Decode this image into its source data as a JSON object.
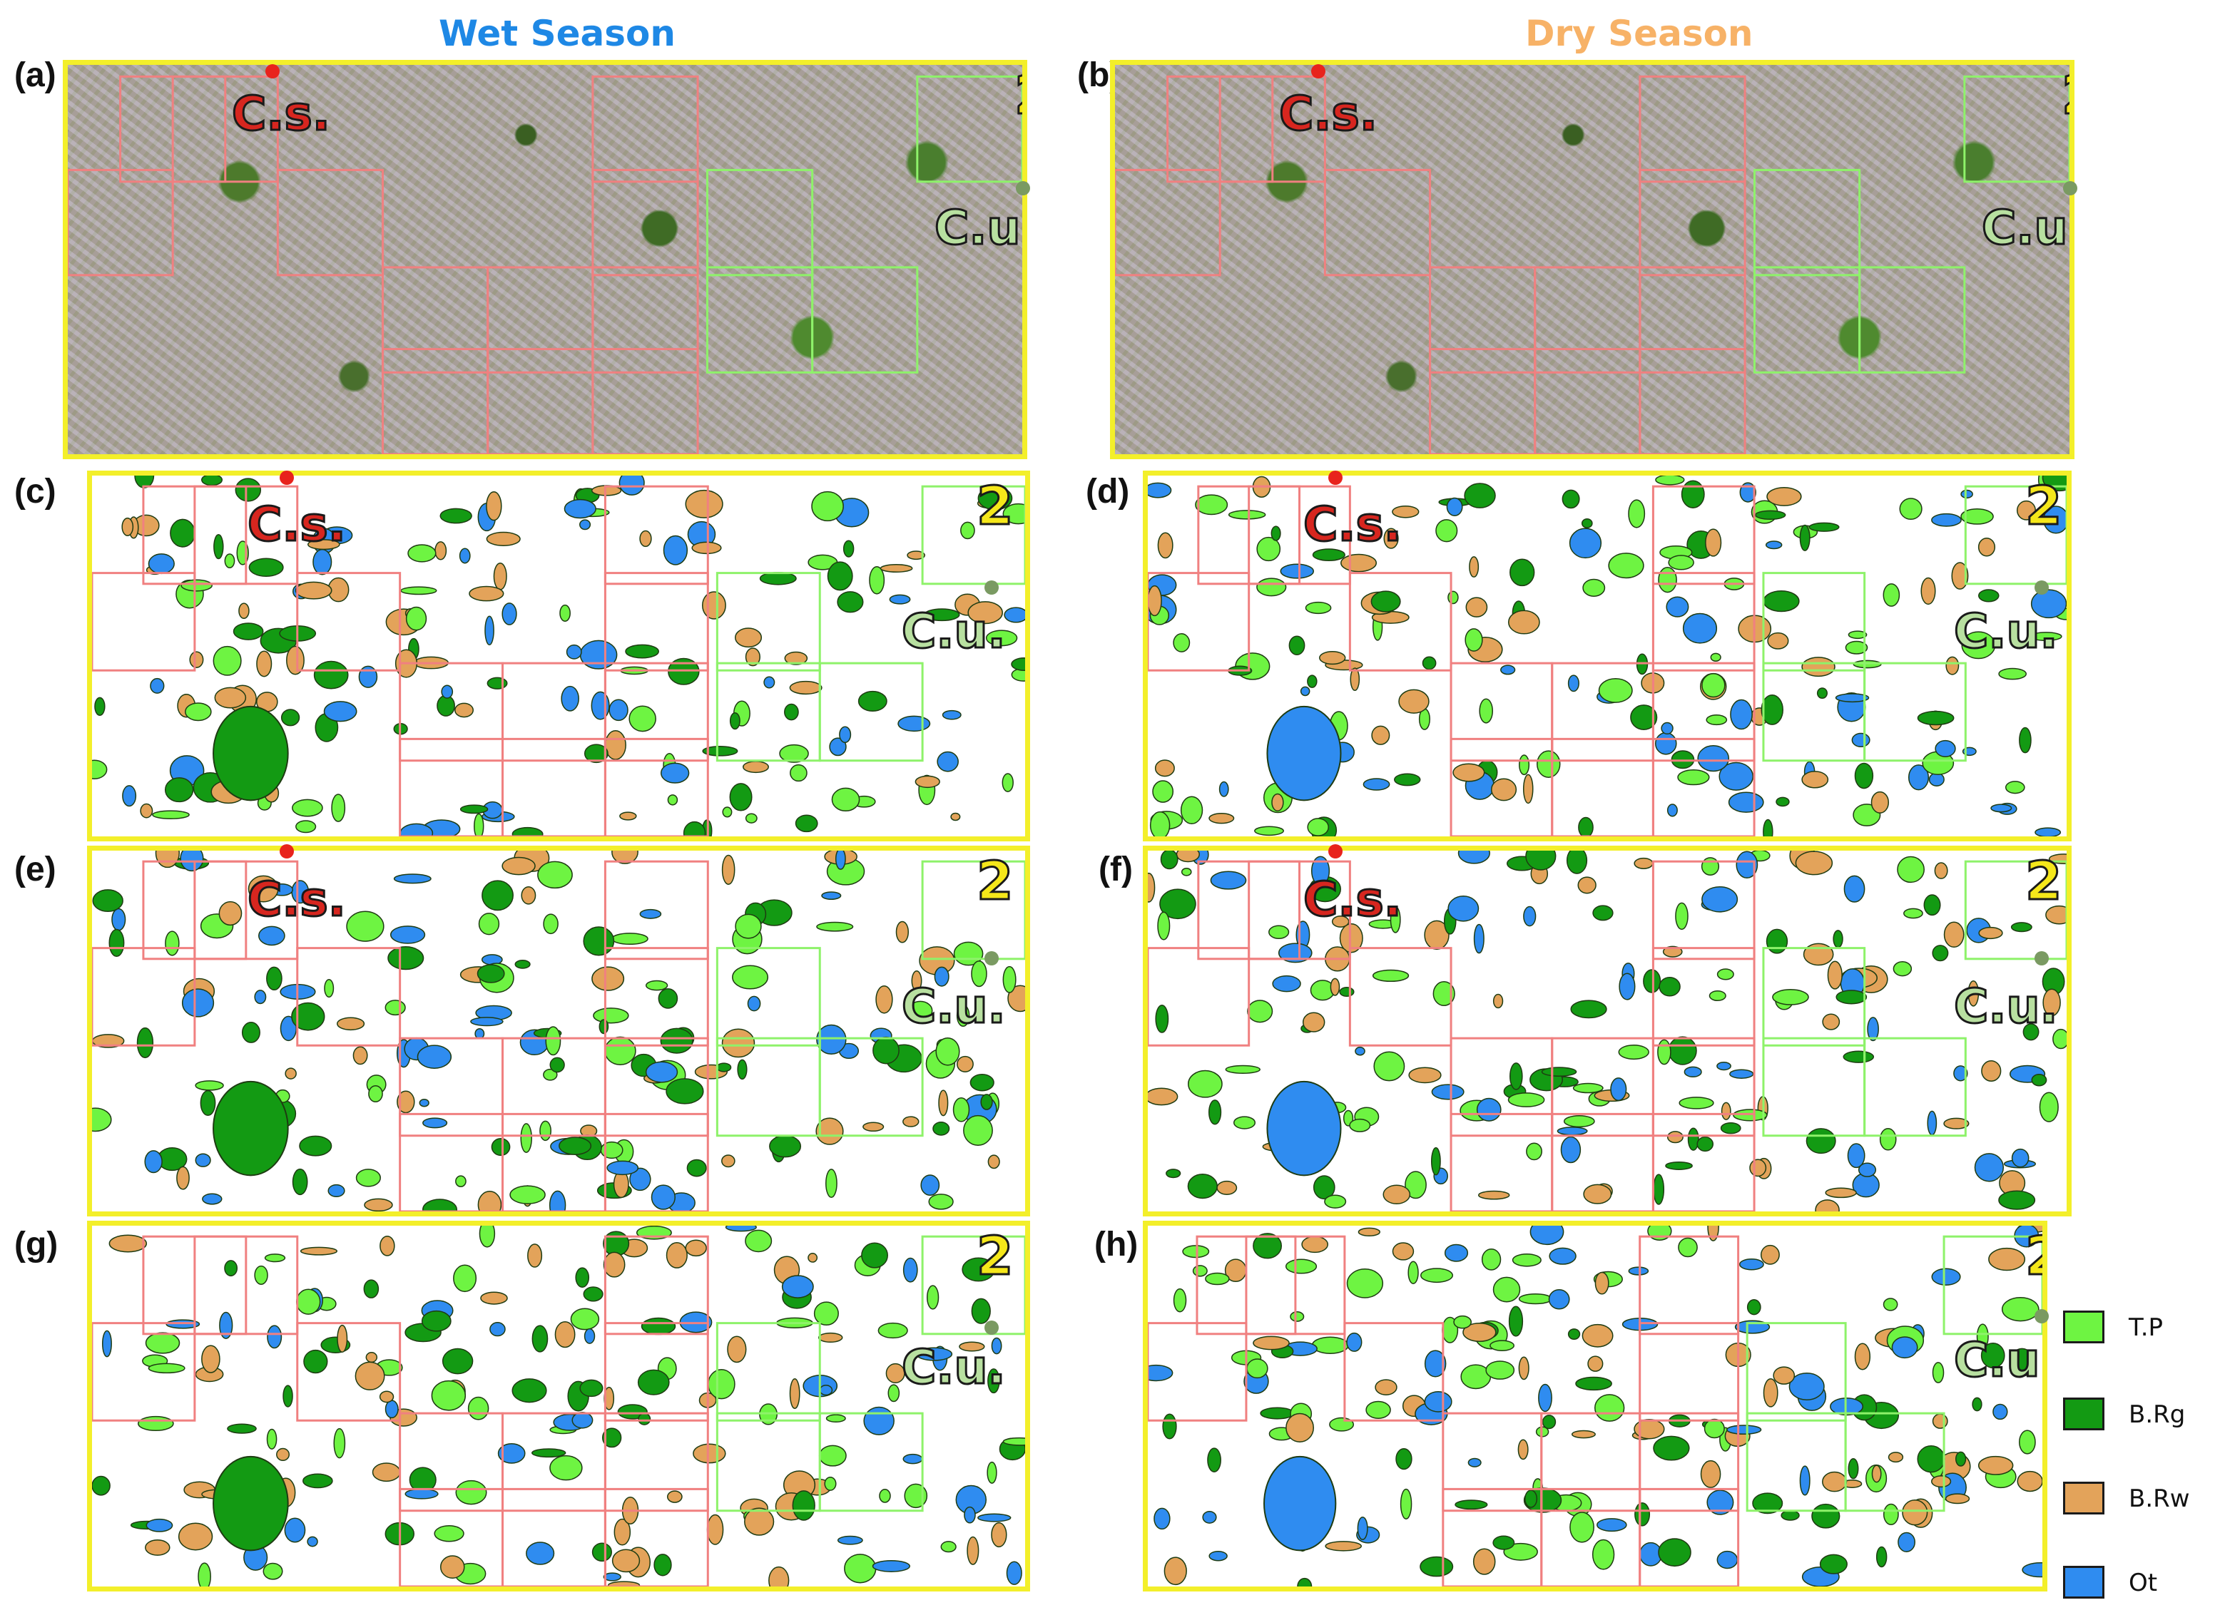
{
  "titles": {
    "wet": "Wet Season",
    "dry": "Dry Season"
  },
  "panels": [
    {
      "id": "a",
      "label": "(a)",
      "kind": "photo",
      "season": "wet"
    },
    {
      "id": "b",
      "label": "(b)",
      "kind": "photo",
      "season": "dry"
    },
    {
      "id": "c",
      "label": "(c)",
      "kind": "classified",
      "season": "wet"
    },
    {
      "id": "d",
      "label": "(d)",
      "kind": "classified",
      "season": "dry"
    },
    {
      "id": "e",
      "label": "(e)",
      "kind": "classified",
      "season": "wet"
    },
    {
      "id": "f",
      "label": "(f)",
      "kind": "classified",
      "season": "dry"
    },
    {
      "id": "g",
      "label": "(g)",
      "kind": "classified",
      "season": "wet"
    },
    {
      "id": "h",
      "label": "(h)",
      "kind": "classified",
      "season": "dry"
    }
  ],
  "site_labels": {
    "cs": "C.s.",
    "cu": "C.u.",
    "num": "2"
  },
  "legend": [
    {
      "label": "T.P",
      "color": "#6ef442"
    },
    {
      "label": "B.Rg",
      "color": "#139a13"
    },
    {
      "label": "B.Rw",
      "color": "#e3a35a"
    },
    {
      "label": "Ot",
      "color": "#2f8cf0"
    }
  ],
  "colors": {
    "frame": "#f3ef2a",
    "cs_grid": "#f08080",
    "cu_grid": "#8ef26a",
    "cs_text": "#d7261f",
    "cu_text": "#b8e0a0",
    "num_text": "#f5e71a",
    "wet_title": "#1e88e5",
    "dry_title": "#f7b267"
  }
}
